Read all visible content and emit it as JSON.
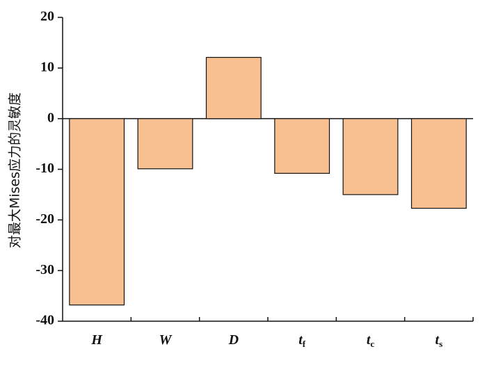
{
  "chart_data": {
    "type": "bar",
    "y_label": "对最大Mises应力的灵敏度",
    "categories": [
      "H",
      "W",
      "D",
      "tf",
      "tc",
      "ts"
    ],
    "values": [
      -36.8,
      -9.9,
      12.1,
      -10.8,
      -15.0,
      -17.7
    ],
    "color": "#f8c090",
    "ylim": [
      -40,
      20
    ],
    "yticks": [
      -40,
      -30,
      -20,
      -10,
      0,
      10,
      20
    ]
  }
}
